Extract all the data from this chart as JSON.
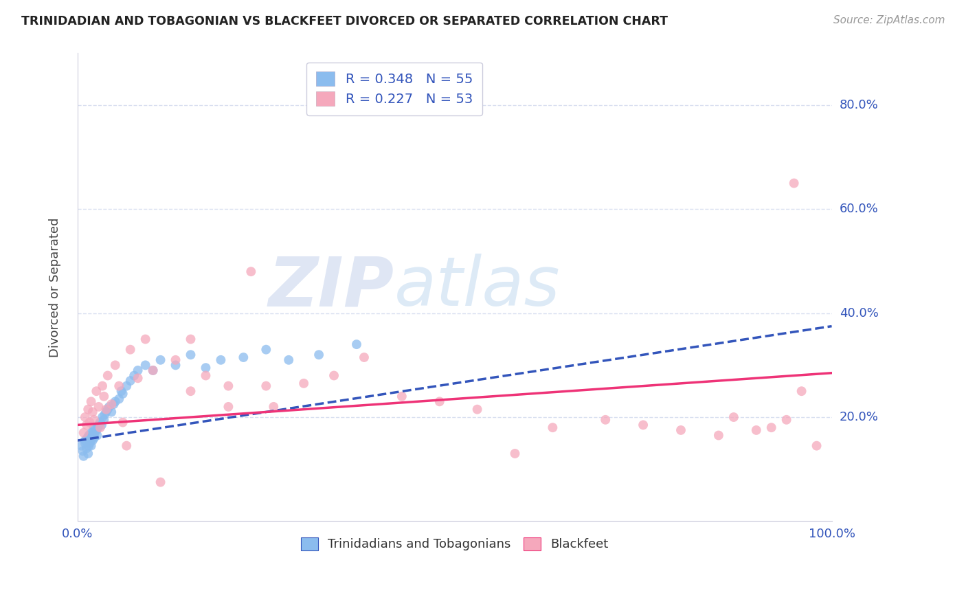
{
  "title": "TRINIDADIAN AND TOBAGONIAN VS BLACKFEET DIVORCED OR SEPARATED CORRELATION CHART",
  "source": "Source: ZipAtlas.com",
  "ylabel": "Divorced or Separated",
  "xlim": [
    0.0,
    1.0
  ],
  "ylim": [
    0.0,
    0.9
  ],
  "xticks": [
    0.0,
    0.2,
    0.4,
    0.6,
    0.8,
    1.0
  ],
  "xticklabels": [
    "0.0%",
    "",
    "",
    "",
    "",
    "100.0%"
  ],
  "ytick_positions": [
    0.2,
    0.4,
    0.6,
    0.8
  ],
  "yticklabels": [
    "20.0%",
    "40.0%",
    "60.0%",
    "80.0%"
  ],
  "grid_color": "#d8dff0",
  "background_color": "#ffffff",
  "trinidadian_color": "#8bbcee",
  "blackfeet_color": "#f5a8bc",
  "trinidadian_line_color": "#3355bb",
  "blackfeet_line_color": "#ee3377",
  "R_trinidadian": 0.348,
  "N_trinidadian": 55,
  "R_blackfeet": 0.227,
  "N_blackfeet": 53,
  "watermark_zip": "ZIP",
  "watermark_atlas": "atlas",
  "trinidadian_scatter_x": [
    0.005,
    0.007,
    0.008,
    0.01,
    0.01,
    0.012,
    0.013,
    0.014,
    0.015,
    0.015,
    0.016,
    0.017,
    0.018,
    0.018,
    0.019,
    0.02,
    0.02,
    0.021,
    0.022,
    0.022,
    0.023,
    0.025,
    0.026,
    0.027,
    0.028,
    0.03,
    0.032,
    0.033,
    0.035,
    0.036,
    0.038,
    0.04,
    0.042,
    0.045,
    0.048,
    0.05,
    0.055,
    0.058,
    0.06,
    0.065,
    0.07,
    0.075,
    0.08,
    0.09,
    0.1,
    0.11,
    0.13,
    0.15,
    0.17,
    0.19,
    0.22,
    0.25,
    0.28,
    0.32,
    0.37
  ],
  "trinidadian_scatter_y": [
    0.145,
    0.135,
    0.125,
    0.15,
    0.155,
    0.14,
    0.16,
    0.13,
    0.165,
    0.145,
    0.15,
    0.155,
    0.145,
    0.17,
    0.16,
    0.165,
    0.155,
    0.175,
    0.16,
    0.18,
    0.17,
    0.175,
    0.165,
    0.18,
    0.185,
    0.19,
    0.185,
    0.2,
    0.195,
    0.205,
    0.21,
    0.215,
    0.22,
    0.21,
    0.225,
    0.23,
    0.235,
    0.25,
    0.245,
    0.26,
    0.27,
    0.28,
    0.29,
    0.3,
    0.29,
    0.31,
    0.3,
    0.32,
    0.295,
    0.31,
    0.315,
    0.33,
    0.31,
    0.32,
    0.34
  ],
  "blackfeet_scatter_x": [
    0.008,
    0.01,
    0.012,
    0.014,
    0.016,
    0.018,
    0.02,
    0.022,
    0.025,
    0.028,
    0.03,
    0.033,
    0.035,
    0.038,
    0.04,
    0.045,
    0.05,
    0.055,
    0.06,
    0.065,
    0.07,
    0.08,
    0.09,
    0.1,
    0.11,
    0.13,
    0.15,
    0.17,
    0.2,
    0.23,
    0.26,
    0.3,
    0.34,
    0.38,
    0.15,
    0.2,
    0.25,
    0.43,
    0.48,
    0.53,
    0.58,
    0.63,
    0.7,
    0.75,
    0.8,
    0.85,
    0.87,
    0.9,
    0.92,
    0.94,
    0.96,
    0.98,
    0.95
  ],
  "blackfeet_scatter_y": [
    0.17,
    0.2,
    0.185,
    0.215,
    0.19,
    0.23,
    0.21,
    0.195,
    0.25,
    0.22,
    0.18,
    0.26,
    0.24,
    0.215,
    0.28,
    0.225,
    0.3,
    0.26,
    0.19,
    0.145,
    0.33,
    0.275,
    0.35,
    0.29,
    0.075,
    0.31,
    0.25,
    0.28,
    0.26,
    0.48,
    0.22,
    0.265,
    0.28,
    0.315,
    0.35,
    0.22,
    0.26,
    0.24,
    0.23,
    0.215,
    0.13,
    0.18,
    0.195,
    0.185,
    0.175,
    0.165,
    0.2,
    0.175,
    0.18,
    0.195,
    0.25,
    0.145,
    0.65
  ]
}
